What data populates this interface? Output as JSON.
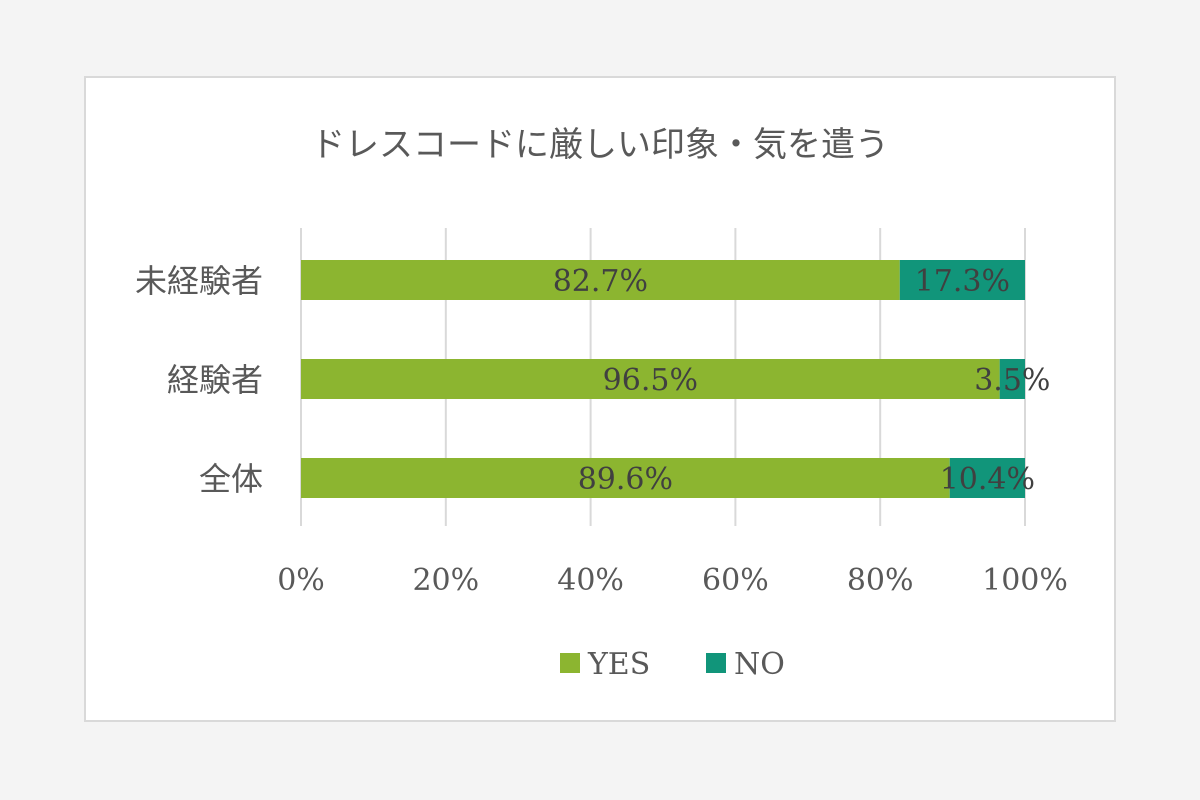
{
  "chart_data": {
    "type": "bar",
    "orientation": "horizontal",
    "stacked": true,
    "title": "ドレスコードに厳しい印象・気を遣う",
    "categories": [
      "未経験者",
      "経験者",
      "全体"
    ],
    "series": [
      {
        "name": "YES",
        "color": "#8cb530",
        "values": [
          82.7,
          96.5,
          89.6
        ],
        "labels": [
          "82.7%",
          "96.5%",
          "89.6%"
        ]
      },
      {
        "name": "NO",
        "color": "#11957a",
        "values": [
          17.3,
          3.5,
          10.4
        ],
        "labels": [
          "17.3%",
          "3.5%",
          "10.4%"
        ]
      }
    ],
    "xlim": [
      0,
      100
    ],
    "x_ticks": [
      0,
      20,
      40,
      60,
      80,
      100
    ],
    "x_tick_labels": [
      "0%",
      "20%",
      "40%",
      "60%",
      "80%",
      "100%"
    ],
    "grid": true,
    "legend": "bottom"
  }
}
